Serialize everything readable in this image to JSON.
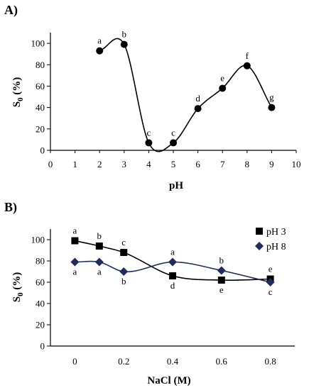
{
  "chart_data": [
    {
      "type": "line",
      "panel_label": "A)",
      "xlabel": "pH",
      "ylabel_main": "S",
      "ylabel_sub": "0",
      "ylabel_suffix": " (%)",
      "xlim": [
        0,
        10
      ],
      "ylim": [
        0,
        110
      ],
      "xticks": [
        0,
        1,
        2,
        3,
        4,
        5,
        6,
        7,
        8,
        9,
        10
      ],
      "yticks": [
        0,
        20,
        40,
        60,
        80,
        100
      ],
      "grid": false,
      "series": [
        {
          "color": "#000000",
          "marker": "circle",
          "points": [
            {
              "x": 2,
              "y": 93,
              "label": "a"
            },
            {
              "x": 3,
              "y": 99,
              "label": "b"
            },
            {
              "x": 4,
              "y": 7,
              "label": "c"
            },
            {
              "x": 5,
              "y": 7,
              "label": "c"
            },
            {
              "x": 6,
              "y": 39,
              "label": "d"
            },
            {
              "x": 7,
              "y": 58,
              "label": "e"
            },
            {
              "x": 8,
              "y": 79,
              "label": "f"
            },
            {
              "x": 9,
              "y": 40,
              "label": "g"
            }
          ]
        }
      ]
    },
    {
      "type": "line",
      "panel_label": "B)",
      "xlabel": "NaCl (M)",
      "ylabel_main": "S",
      "ylabel_sub": "0",
      "ylabel_suffix": " (%)",
      "xlim": [
        -0.1,
        0.9
      ],
      "ylim": [
        0,
        110
      ],
      "xticks": [
        "0",
        "0.2",
        "0.4",
        "0.6",
        "0.8"
      ],
      "xtick_values": [
        0,
        0.2,
        0.4,
        0.6,
        0.8
      ],
      "yticks": [
        0,
        20,
        40,
        60,
        80,
        100
      ],
      "grid": false,
      "legend": "top-right",
      "series": [
        {
          "name": "pH 3",
          "color": "#000000",
          "marker": "square",
          "points": [
            {
              "x": 0,
              "y": 99,
              "label": "a"
            },
            {
              "x": 0.1,
              "y": 94,
              "label": "b"
            },
            {
              "x": 0.2,
              "y": 88,
              "label": "c"
            },
            {
              "x": 0.4,
              "y": 66,
              "label": "d"
            },
            {
              "x": 0.6,
              "y": 62,
              "label": "e"
            },
            {
              "x": 0.8,
              "y": 63,
              "label": "e"
            }
          ]
        },
        {
          "name": "pH 8",
          "color": "#1f2d5c",
          "marker": "diamond",
          "points": [
            {
              "x": 0,
              "y": 79,
              "label": "a"
            },
            {
              "x": 0.1,
              "y": 79,
              "label": "a"
            },
            {
              "x": 0.2,
              "y": 70,
              "label": "b"
            },
            {
              "x": 0.4,
              "y": 79,
              "label": "a"
            },
            {
              "x": 0.6,
              "y": 71,
              "label": "b"
            },
            {
              "x": 0.8,
              "y": 60,
              "label": "c"
            }
          ]
        }
      ]
    }
  ]
}
